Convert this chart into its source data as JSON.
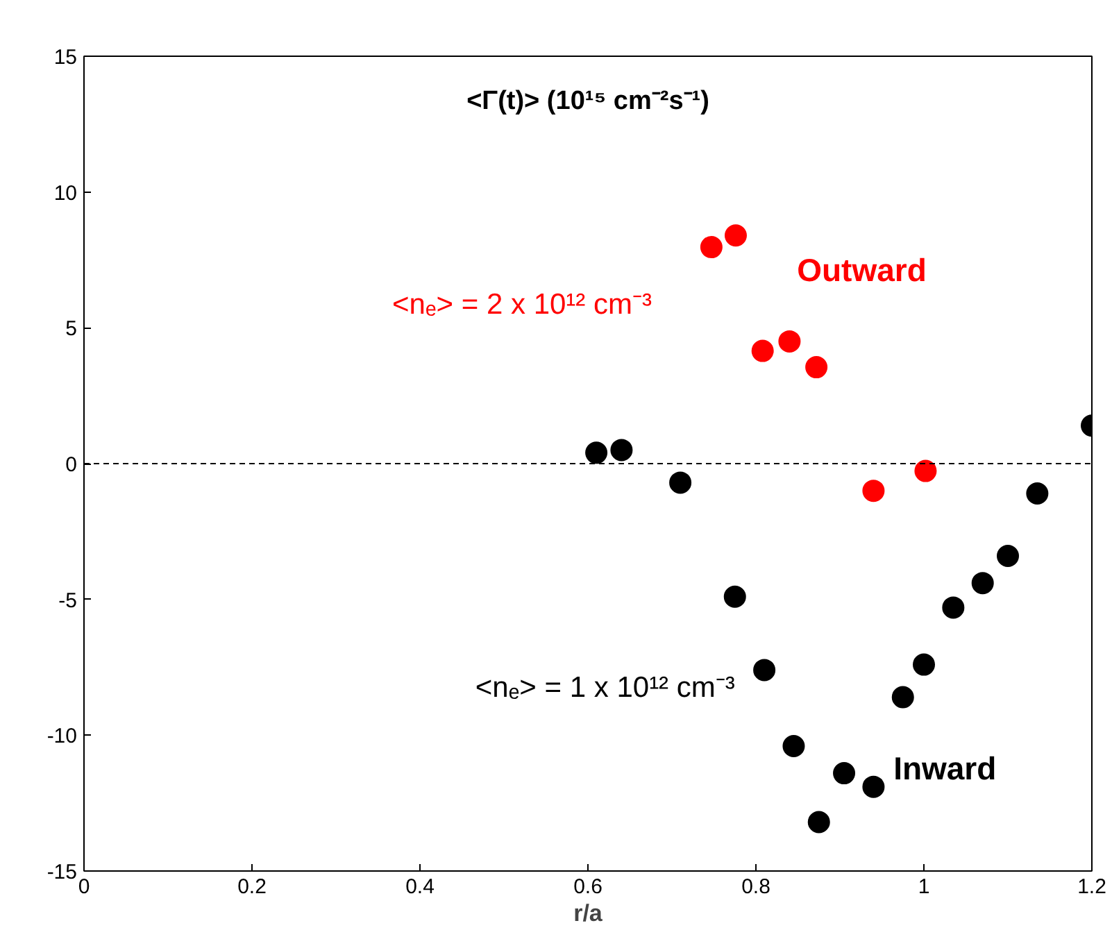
{
  "chart_data": {
    "type": "scatter",
    "title": "<Γ(t)> (10¹⁵ cm⁻²s⁻¹)",
    "xlabel": "r/a",
    "xlim": [
      0,
      1.2
    ],
    "xticks": [
      0,
      0.2,
      0.4,
      0.6,
      0.8,
      1,
      1.2
    ],
    "ylim": [
      -15,
      15
    ],
    "yticks": [
      -15,
      -10,
      -5,
      0,
      5,
      10,
      15
    ],
    "grid": false,
    "marker": "circle",
    "series": [
      {
        "name": "<nₑ> = 2 x 10¹² cm⁻³",
        "color": "#ff0000",
        "x": [
          0.747,
          0.776,
          0.808,
          0.84,
          0.872,
          0.94,
          1.002
        ],
        "values": [
          7.97,
          8.4,
          4.15,
          4.5,
          3.55,
          -1.0,
          -0.27
        ]
      },
      {
        "name": "<nₑ> = 1 x 10¹² cm⁻³",
        "color": "#000000",
        "x": [
          0.61,
          0.64,
          0.71,
          0.775,
          0.81,
          0.845,
          0.875,
          0.905,
          0.94,
          0.975,
          1.0,
          1.035,
          1.07,
          1.1,
          1.135,
          1.2
        ],
        "values": [
          0.4,
          0.5,
          -0.7,
          -4.9,
          -7.6,
          -10.4,
          -13.2,
          -11.4,
          -11.9,
          -8.6,
          -7.4,
          -5.3,
          -4.4,
          -3.4,
          -1.1,
          1.4
        ]
      }
    ],
    "ref_lines": [
      {
        "axis": "y",
        "value": 0,
        "color": "#000000",
        "line_style": "dashed"
      }
    ],
    "annotations": [
      "Outward",
      "Inward"
    ]
  }
}
